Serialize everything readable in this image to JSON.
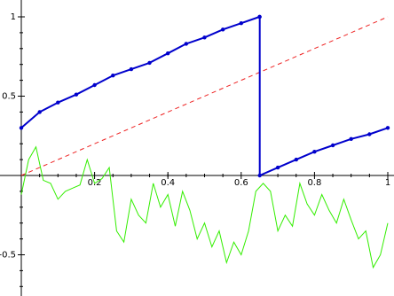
{
  "chart_data": {
    "type": "line",
    "title": "",
    "xlabel": "",
    "ylabel": "",
    "xlim": [
      0,
      1
    ],
    "ylim": [
      -0.75,
      1.05
    ],
    "axis_style": "cross at origin",
    "grid": false,
    "legend": "none",
    "x_tick_labels": [
      {
        "value": 0.2,
        "label": "0.2"
      },
      {
        "value": 0.4,
        "label": "0.4"
      },
      {
        "value": 0.6,
        "label": "0.6"
      },
      {
        "value": 0.8,
        "label": "0.8"
      },
      {
        "value": 1.0,
        "label": "1"
      }
    ],
    "y_tick_labels": [
      {
        "value": 1.0,
        "label": "1"
      },
      {
        "value": 0.5,
        "label": "0.5"
      },
      {
        "value": -0.5,
        "label": "-0.5"
      }
    ],
    "series": [
      {
        "id": "green",
        "style": "thin jagged line",
        "color": "#33ee00",
        "x": [
          0.0,
          0.02,
          0.04,
          0.06,
          0.08,
          0.1,
          0.12,
          0.14,
          0.16,
          0.18,
          0.2,
          0.22,
          0.24,
          0.26,
          0.28,
          0.3,
          0.32,
          0.34,
          0.36,
          0.38,
          0.4,
          0.42,
          0.44,
          0.46,
          0.48,
          0.5,
          0.52,
          0.54,
          0.56,
          0.58,
          0.6,
          0.62,
          0.64,
          0.66,
          0.68,
          0.7,
          0.72,
          0.74,
          0.76,
          0.78,
          0.8,
          0.82,
          0.84,
          0.86,
          0.88,
          0.9,
          0.92,
          0.94,
          0.96,
          0.98,
          1.0
        ],
        "y": [
          -0.12,
          0.1,
          0.18,
          -0.03,
          -0.05,
          -0.15,
          -0.1,
          -0.08,
          -0.06,
          0.1,
          -0.05,
          -0.02,
          0.05,
          -0.35,
          -0.42,
          -0.15,
          -0.25,
          -0.3,
          -0.05,
          -0.2,
          -0.12,
          -0.32,
          -0.1,
          -0.22,
          -0.4,
          -0.3,
          -0.45,
          -0.35,
          -0.55,
          -0.42,
          -0.5,
          -0.35,
          -0.1,
          -0.05,
          -0.1,
          -0.35,
          -0.25,
          -0.32,
          -0.05,
          -0.18,
          -0.25,
          -0.12,
          -0.22,
          -0.3,
          -0.15,
          -0.28,
          -0.4,
          -0.35,
          -0.58,
          -0.5,
          -0.3
        ]
      },
      {
        "id": "red-dashed",
        "style": "dashed line",
        "color": "#ee2222",
        "x": [
          0.0,
          1.0
        ],
        "y": [
          0.0,
          1.0
        ]
      },
      {
        "id": "blue",
        "style": "thick line with dense markers",
        "color": "#0000cc",
        "x": [
          0.0,
          0.05,
          0.1,
          0.15,
          0.2,
          0.25,
          0.3,
          0.35,
          0.4,
          0.45,
          0.5,
          0.55,
          0.6,
          0.65,
          0.6506,
          0.6507,
          0.7,
          0.75,
          0.8,
          0.85,
          0.9,
          0.95,
          1.0
        ],
        "y": [
          0.3,
          0.4,
          0.46,
          0.51,
          0.57,
          0.63,
          0.67,
          0.71,
          0.77,
          0.83,
          0.87,
          0.92,
          0.96,
          1.0,
          1.0,
          0.0,
          0.05,
          0.1,
          0.15,
          0.19,
          0.23,
          0.26,
          0.3
        ]
      }
    ]
  }
}
